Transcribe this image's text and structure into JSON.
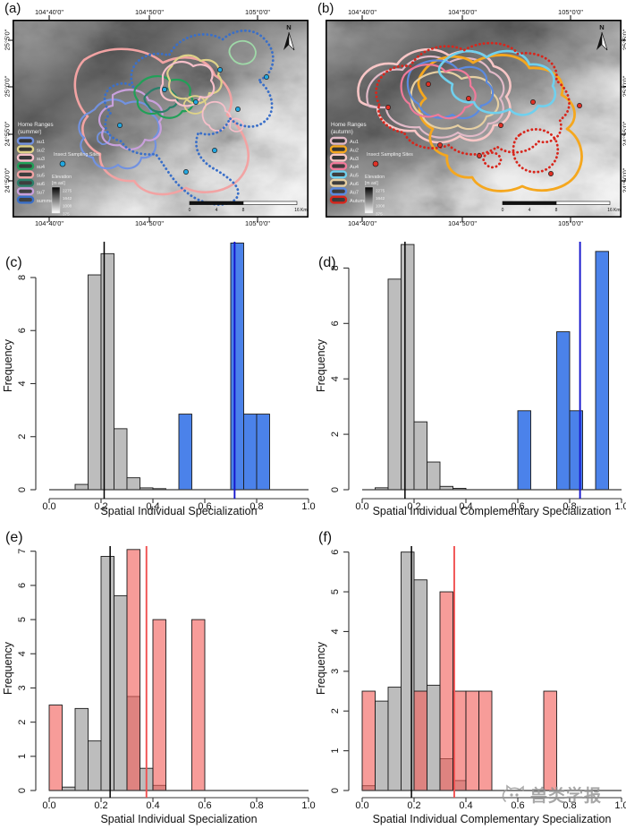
{
  "watermark": {
    "text": "兽类学报"
  },
  "maps": {
    "lon_ticks": [
      "104°40'0\"",
      "104°50'0\"",
      "105°0'0\""
    ],
    "lat_ticks": [
      "25°5'0\"",
      "25°0'0\"",
      "24°55'0\"",
      "24°50'0\""
    ],
    "north_label": "N",
    "sampling_label": "Insect Sampling Sites",
    "elevation": {
      "title": "Elevation",
      "subtitle": "[m asl]",
      "ticks": [
        "2275",
        "1642",
        "1008",
        "375"
      ]
    },
    "scalebar": {
      "labels": [
        "0",
        "4",
        "8",
        "16"
      ],
      "unit": "Km"
    },
    "panel_a": {
      "label": "(a)",
      "legend_title": "Home Ranges",
      "legend_season": "(summer)",
      "sampling_color": "#22a7e0",
      "minor_contour_color": "#9fd9a8",
      "items": [
        {
          "label": "su1",
          "color": "#7292e0"
        },
        {
          "label": "su2",
          "color": "#ded288"
        },
        {
          "label": "su3",
          "color": "#f6bfc9"
        },
        {
          "label": "su4",
          "color": "#21a058"
        },
        {
          "label": "su5",
          "color": "#f2a3a3"
        },
        {
          "label": "su6",
          "color": "#2a7f6a"
        },
        {
          "label": "su7",
          "color": "#c9a0dc"
        },
        {
          "label": "summer",
          "color": "#3a6fc8"
        }
      ]
    },
    "panel_b": {
      "label": "(b)",
      "legend_title": "Home Ranges",
      "legend_season": "(autumn)",
      "sampling_color": "#e03024",
      "minor_contour_color": "#f5a71e",
      "items": [
        {
          "label": "Au1",
          "color": "#e2bac8"
        },
        {
          "label": "Au2",
          "color": "#f5a71e"
        },
        {
          "label": "Au3",
          "color": "#f8c6c6"
        },
        {
          "label": "Au4",
          "color": "#f07a9a"
        },
        {
          "label": "Au5",
          "color": "#6fd0ee"
        },
        {
          "label": "Au6",
          "color": "#e6cfa2"
        },
        {
          "label": "Au7",
          "color": "#5b8ae0"
        },
        {
          "label": "Autumn",
          "color": "#d8261c"
        }
      ]
    }
  },
  "chart_data": [
    {
      "type": "bar",
      "panel": "(c)",
      "xlabel": "Spatial Individual Specialization",
      "ylabel": "Frequency",
      "xlim": [
        0.0,
        1.0
      ],
      "xticks": [
        0.0,
        0.2,
        0.4,
        0.6,
        0.8,
        1.0
      ],
      "yticks": [
        0,
        2,
        4,
        6,
        8
      ],
      "ymax": 9.35,
      "bin_width": 0.05,
      "grid": false,
      "series": [
        {
          "name": "grey-bars",
          "color": "#bdbdbd",
          "bars": [
            {
              "x": 0.1,
              "h": 0.2
            },
            {
              "x": 0.15,
              "h": 8.1
            },
            {
              "x": 0.2,
              "h": 8.9
            },
            {
              "x": 0.25,
              "h": 2.3
            },
            {
              "x": 0.3,
              "h": 0.45
            },
            {
              "x": 0.35,
              "h": 0.07
            },
            {
              "x": 0.4,
              "h": 0.04
            }
          ]
        },
        {
          "name": "blue-bars",
          "color": "#4b82ea",
          "bars": [
            {
              "x": 0.5,
              "h": 2.85
            },
            {
              "x": 0.7,
              "h": 9.3
            },
            {
              "x": 0.75,
              "h": 2.85
            },
            {
              "x": 0.8,
              "h": 2.85
            }
          ]
        }
      ],
      "vlines": [
        {
          "x": 0.212,
          "color": "#000000"
        },
        {
          "x": 0.715,
          "color": "#1414cc"
        }
      ]
    },
    {
      "type": "bar",
      "panel": "(d)",
      "xlabel": "Spatial Individual Complementary Specialization",
      "ylabel": "Frequency",
      "xlim": [
        0.0,
        1.0
      ],
      "xticks": [
        0.0,
        0.2,
        0.4,
        0.6,
        0.8,
        1.0
      ],
      "yticks": [
        0,
        2,
        4,
        6,
        8
      ],
      "ymax": 8.95,
      "bin_width": 0.05,
      "grid": false,
      "series": [
        {
          "name": "grey-bars",
          "color": "#bdbdbd",
          "bars": [
            {
              "x": 0.05,
              "h": 0.07
            },
            {
              "x": 0.1,
              "h": 7.6
            },
            {
              "x": 0.15,
              "h": 8.85
            },
            {
              "x": 0.2,
              "h": 2.45
            },
            {
              "x": 0.25,
              "h": 1.0
            },
            {
              "x": 0.3,
              "h": 0.12
            },
            {
              "x": 0.35,
              "h": 0.05
            }
          ]
        },
        {
          "name": "blue-bars",
          "color": "#4b82ea",
          "bars": [
            {
              "x": 0.6,
              "h": 2.85
            },
            {
              "x": 0.75,
              "h": 5.7
            },
            {
              "x": 0.8,
              "h": 2.85
            },
            {
              "x": 0.9,
              "h": 8.6
            }
          ]
        }
      ],
      "vlines": [
        {
          "x": 0.165,
          "color": "#000000"
        },
        {
          "x": 0.84,
          "color": "#1414cc"
        }
      ]
    },
    {
      "type": "bar",
      "panel": "(e)",
      "xlabel": "Spatial Individual Specialization",
      "ylabel": "Frequency",
      "xlim": [
        0.0,
        1.0
      ],
      "xticks": [
        0.0,
        0.2,
        0.4,
        0.6,
        0.8,
        1.0
      ],
      "yticks": [
        0,
        1,
        2,
        3,
        4,
        5,
        6,
        7
      ],
      "ymax": 7.15,
      "bin_width": 0.05,
      "grid": false,
      "series": [
        {
          "name": "grey-bars",
          "color": "#bdbdbd",
          "bars": [
            {
              "x": 0.05,
              "h": 0.1
            },
            {
              "x": 0.1,
              "h": 2.4
            },
            {
              "x": 0.15,
              "h": 1.45
            },
            {
              "x": 0.2,
              "h": 6.85
            },
            {
              "x": 0.25,
              "h": 5.7
            },
            {
              "x": 0.3,
              "h": 2.75
            },
            {
              "x": 0.35,
              "h": 0.65
            },
            {
              "x": 0.4,
              "h": 0.15
            }
          ]
        },
        {
          "name": "pink-bars",
          "color": "rgba(242,96,90,0.62)",
          "bars": [
            {
              "x": 0.0,
              "h": 2.5
            },
            {
              "x": 0.3,
              "h": 7.05
            },
            {
              "x": 0.4,
              "h": 5.0
            },
            {
              "x": 0.55,
              "h": 5.0
            }
          ]
        }
      ],
      "vlines": [
        {
          "x": 0.235,
          "color": "#000000"
        },
        {
          "x": 0.375,
          "color": "#f05050"
        }
      ]
    },
    {
      "type": "bar",
      "panel": "(f)",
      "xlabel": "Spatial Individual Complementary Specialization",
      "ylabel": "Frequency",
      "xlim": [
        0.0,
        1.0
      ],
      "xticks": [
        0.0,
        0.2,
        0.4,
        0.6,
        0.8,
        1.0
      ],
      "yticks": [
        0,
        1,
        2,
        3,
        4,
        5,
        6
      ],
      "ymax": 6.15,
      "bin_width": 0.05,
      "grid": false,
      "series": [
        {
          "name": "grey-bars",
          "color": "#bdbdbd",
          "bars": [
            {
              "x": 0.0,
              "h": 0.12
            },
            {
              "x": 0.05,
              "h": 2.25
            },
            {
              "x": 0.1,
              "h": 2.6
            },
            {
              "x": 0.15,
              "h": 6.0
            },
            {
              "x": 0.2,
              "h": 5.3
            },
            {
              "x": 0.25,
              "h": 2.65
            },
            {
              "x": 0.3,
              "h": 0.8
            },
            {
              "x": 0.35,
              "h": 0.25
            }
          ]
        },
        {
          "name": "pink-bars",
          "color": "rgba(242,96,90,0.62)",
          "bars": [
            {
              "x": 0.0,
              "h": 2.5
            },
            {
              "x": 0.2,
              "h": 2.5
            },
            {
              "x": 0.3,
              "h": 5.0
            },
            {
              "x": 0.35,
              "h": 2.5
            },
            {
              "x": 0.4,
              "h": 2.5
            },
            {
              "x": 0.45,
              "h": 2.5
            },
            {
              "x": 0.7,
              "h": 2.5
            }
          ]
        }
      ],
      "vlines": [
        {
          "x": 0.19,
          "color": "#000000"
        },
        {
          "x": 0.355,
          "color": "#f05050"
        }
      ]
    }
  ]
}
